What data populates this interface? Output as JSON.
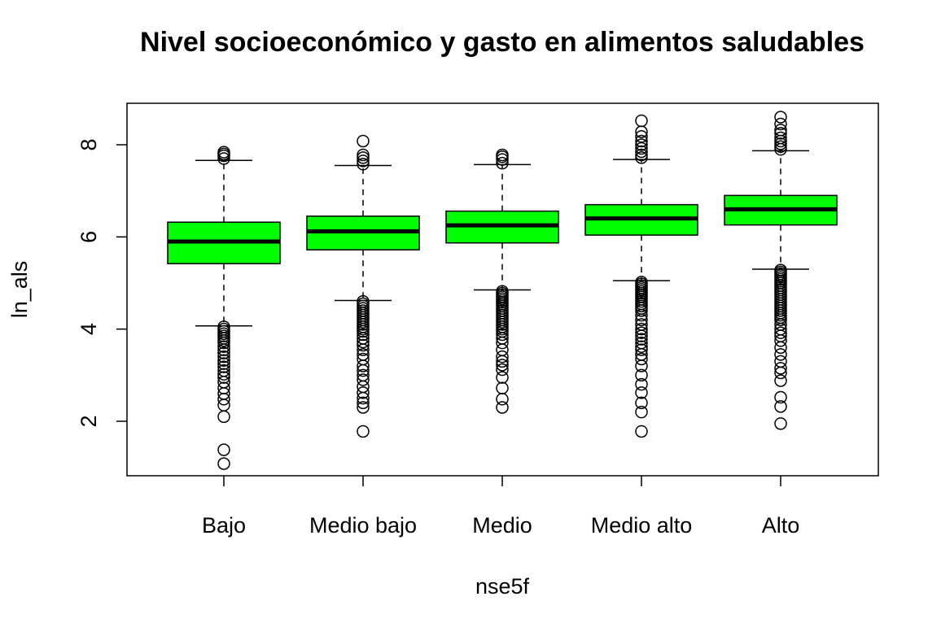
{
  "chart_data": {
    "type": "boxplot",
    "title": "Nivel socioeconómico y gasto en alimentos saludables",
    "xlabel": "nse5f",
    "ylabel": "ln_als",
    "ylim": [
      0.8,
      8.9
    ],
    "yticks": [
      2,
      4,
      6,
      8
    ],
    "box_color": "#00ff00",
    "categories": [
      "Bajo",
      "Medio bajo",
      "Medio",
      "Medio alto",
      "Alto"
    ],
    "boxes": [
      {
        "category": "Bajo",
        "whisker_low": 4.07,
        "q1": 5.42,
        "median": 5.9,
        "q3": 6.32,
        "whisker_high": 7.66,
        "outliers_low": [
          4.05,
          4.0,
          3.95,
          3.9,
          3.85,
          3.8,
          3.75,
          3.7,
          3.62,
          3.55,
          3.48,
          3.4,
          3.32,
          3.25,
          3.18,
          3.1,
          3.02,
          2.95,
          2.85,
          2.72,
          2.6,
          2.48,
          2.35,
          2.1,
          1.38,
          1.08
        ],
        "outliers_high": [
          7.7,
          7.76,
          7.8,
          7.84
        ]
      },
      {
        "category": "Medio bajo",
        "whisker_low": 4.62,
        "q1": 5.72,
        "median": 6.12,
        "q3": 6.45,
        "whisker_high": 7.55,
        "outliers_low": [
          4.6,
          4.55,
          4.5,
          4.45,
          4.4,
          4.35,
          4.3,
          4.25,
          4.2,
          4.15,
          4.1,
          4.05,
          4.0,
          3.95,
          3.88,
          3.8,
          3.72,
          3.65,
          3.55,
          3.45,
          3.35,
          3.2,
          3.1,
          3.0,
          2.9,
          2.75,
          2.62,
          2.5,
          2.4,
          2.3,
          1.78
        ],
        "outliers_high": [
          7.58,
          7.65,
          7.72,
          7.78,
          8.08
        ]
      },
      {
        "category": "Medio",
        "whisker_low": 4.85,
        "q1": 5.87,
        "median": 6.25,
        "q3": 6.56,
        "whisker_high": 7.57,
        "outliers_low": [
          4.82,
          4.78,
          4.74,
          4.7,
          4.66,
          4.62,
          4.58,
          4.54,
          4.5,
          4.45,
          4.4,
          4.35,
          4.3,
          4.25,
          4.2,
          4.15,
          4.1,
          4.05,
          4.0,
          3.95,
          3.88,
          3.8,
          3.7,
          3.55,
          3.4,
          3.3,
          3.22,
          3.12,
          2.95,
          2.72,
          2.48,
          2.3
        ],
        "outliers_high": [
          7.6,
          7.68,
          7.74,
          7.78
        ]
      },
      {
        "category": "Medio alto",
        "whisker_low": 5.05,
        "q1": 6.04,
        "median": 6.4,
        "q3": 6.7,
        "whisker_high": 7.68,
        "outliers_low": [
          5.02,
          4.98,
          4.94,
          4.9,
          4.86,
          4.82,
          4.78,
          4.74,
          4.7,
          4.65,
          4.6,
          4.55,
          4.5,
          4.45,
          4.4,
          4.3,
          4.2,
          4.1,
          4.0,
          3.92,
          3.85,
          3.78,
          3.7,
          3.62,
          3.55,
          3.45,
          3.35,
          3.2,
          3.0,
          2.8,
          2.62,
          2.4,
          2.2,
          1.78
        ],
        "outliers_high": [
          7.72,
          7.78,
          7.85,
          7.92,
          8.0,
          8.08,
          8.18,
          8.28,
          8.52
        ]
      },
      {
        "category": "Alto",
        "whisker_low": 5.3,
        "q1": 6.26,
        "median": 6.6,
        "q3": 6.9,
        "whisker_high": 7.87,
        "outliers_low": [
          5.28,
          5.24,
          5.2,
          5.16,
          5.12,
          5.08,
          5.04,
          5.0,
          4.95,
          4.9,
          4.85,
          4.8,
          4.75,
          4.7,
          4.65,
          4.6,
          4.55,
          4.5,
          4.45,
          4.4,
          4.35,
          4.3,
          4.25,
          4.2,
          4.1,
          4.0,
          3.92,
          3.85,
          3.75,
          3.6,
          3.45,
          3.3,
          3.15,
          3.05,
          2.88,
          2.52,
          2.32,
          1.95
        ],
        "outliers_high": [
          7.9,
          7.96,
          8.02,
          8.08,
          8.15,
          8.25,
          8.32,
          8.45,
          8.6
        ]
      }
    ]
  }
}
